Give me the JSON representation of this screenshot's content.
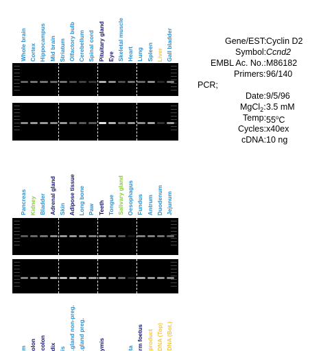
{
  "colors": {
    "blue": "#2f8fcf",
    "navy": "#15146e",
    "green": "#8bc83b",
    "yellow": "#f0c64a"
  },
  "panel1": {
    "lanes": [
      {
        "label": "Whole brain",
        "color": "blue",
        "bands": [
          0.4,
          0.55
        ]
      },
      {
        "label": "Cortex",
        "color": "blue",
        "bands": [
          0.45,
          0.6
        ]
      },
      {
        "label": "Hippocampus",
        "color": "blue",
        "bands": [
          0.45,
          0.6
        ]
      },
      {
        "label": "Mid brain",
        "color": "blue",
        "bands": [
          0.4,
          0.55
        ]
      },
      {
        "label": "Striatum",
        "color": "blue",
        "bands": [
          0.45,
          0.6
        ]
      },
      {
        "label": "Olfactory bulb",
        "color": "blue",
        "bands": [
          0.3,
          0.45
        ]
      },
      {
        "label": "Cerebellum",
        "color": "blue",
        "bands": [
          0.25,
          0.35
        ]
      },
      {
        "label": "Spinal cord",
        "color": "blue",
        "bands": [
          0.2,
          0.35
        ]
      },
      {
        "label": "Pituitary gland",
        "color": "navy",
        "bands": [
          0.7,
          0.9
        ]
      },
      {
        "label": "Eye",
        "color": "navy",
        "bands": [
          0.55,
          0.7
        ]
      },
      {
        "label": "Skeletal muscle",
        "color": "blue",
        "bands": [
          0.3,
          0.45
        ]
      },
      {
        "label": "Heart",
        "color": "blue",
        "bands": [
          0.45,
          0.6
        ]
      },
      {
        "label": "Lung",
        "color": "blue",
        "bands": [
          0.4,
          0.55
        ]
      },
      {
        "label": "Spleen",
        "color": "blue",
        "bands": [
          0.55,
          0.65
        ]
      },
      {
        "label": "Liver",
        "color": "yellow",
        "bands": [
          0.15,
          0.2
        ]
      },
      {
        "label": "Gall bladder",
        "color": "blue",
        "bands": [
          0.5,
          0.6
        ]
      }
    ],
    "dividers_after": [
      4,
      8,
      12
    ]
  },
  "panel2": {
    "lanes": [
      {
        "label": "Pancreas",
        "color": "blue",
        "bands": [
          0.35,
          0.5
        ]
      },
      {
        "label": "Kidney",
        "color": "green",
        "bands": [
          0.4,
          0.55
        ]
      },
      {
        "label": "Bladder",
        "color": "blue",
        "bands": [
          0.45,
          0.6
        ]
      },
      {
        "label": "Adrenal gland",
        "color": "navy",
        "bands": [
          0.55,
          0.7
        ]
      },
      {
        "label": "Skin",
        "color": "blue",
        "bands": [
          0.6,
          0.75
        ]
      },
      {
        "label": "Adipose tissue",
        "color": "navy",
        "bands": [
          0.6,
          0.75
        ]
      },
      {
        "label": "Long bone",
        "color": "blue",
        "bands": [
          0.55,
          0.7
        ]
      },
      {
        "label": "Paw",
        "color": "blue",
        "bands": [
          0.5,
          0.65
        ]
      },
      {
        "label": "Teeth",
        "color": "navy",
        "bands": [
          0.55,
          0.7
        ]
      },
      {
        "label": "Tongue",
        "color": "blue",
        "bands": [
          0.45,
          0.6
        ]
      },
      {
        "label": "Salivary gland",
        "color": "green",
        "bands": [
          0.35,
          0.45
        ]
      },
      {
        "label": "Oesophagus",
        "color": "blue",
        "bands": [
          0.1,
          0.15
        ]
      },
      {
        "label": "Fundus",
        "color": "blue",
        "bands": [
          0.5,
          0.65
        ]
      },
      {
        "label": "Antrum",
        "color": "blue",
        "bands": [
          0.5,
          0.6
        ]
      },
      {
        "label": "Duodenum",
        "color": "blue",
        "bands": [
          0.45,
          0.6
        ]
      },
      {
        "label": "Jejunum",
        "color": "blue",
        "bands": [
          0.4,
          0.55
        ]
      }
    ],
    "dividers_after": [
      4,
      8,
      12
    ]
  },
  "panel3": {
    "lanes": [
      {
        "label": "m",
        "color": "blue"
      },
      {
        "label": "olon",
        "color": "navy"
      },
      {
        "label": "colon",
        "color": "navy"
      },
      {
        "label": "dix",
        "color": "navy"
      },
      {
        "label": "is",
        "color": "blue"
      },
      {
        "label": ".gland non-preg.",
        "color": "blue"
      },
      {
        "label": ".gland preg.",
        "color": "blue"
      },
      {
        "label": "",
        "color": "blue"
      },
      {
        "label": "ymis",
        "color": "navy"
      },
      {
        "label": "",
        "color": "blue"
      },
      {
        "label": "",
        "color": "blue"
      },
      {
        "label": "ta",
        "color": "blue"
      },
      {
        "label": "rm foetus",
        "color": "navy"
      },
      {
        "label": "product",
        "color": "yellow"
      },
      {
        "label": "DNA (Top)",
        "color": "yellow"
      },
      {
        "label": "DNA (Bot.)",
        "color": "yellow"
      }
    ]
  },
  "info": [
    {
      "key": "Gene/EST:",
      "value": "Cyclin D2"
    },
    {
      "key": "Symbol:",
      "value": "Ccnd2",
      "italic": true
    },
    {
      "key": "EMBL Ac. No.:",
      "value": "M86182"
    },
    {
      "key": "Primers:",
      "value": "96/140"
    },
    {
      "key": "PCR;",
      "value": ""
    },
    {
      "key": "Date:",
      "value": "9/5/96"
    },
    {
      "key": "MgCl",
      "key_sub": "2",
      "key_tail": ":",
      "value": "3.5 mM"
    },
    {
      "key": "Temp:",
      "value": "55",
      "value_sup": "o",
      "value_tail": "C"
    },
    {
      "key": "Cycles:",
      "value": "x40ex"
    },
    {
      "key": "cDNA:",
      "value": "10 ng"
    }
  ]
}
